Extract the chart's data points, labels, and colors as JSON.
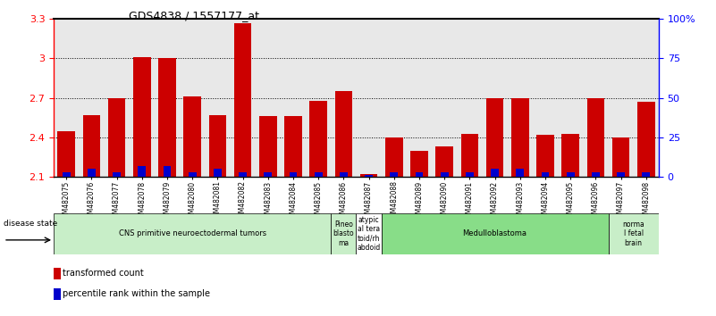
{
  "title": "GDS4838 / 1557177_at",
  "samples": [
    "GSM482075",
    "GSM482076",
    "GSM482077",
    "GSM482078",
    "GSM482079",
    "GSM482080",
    "GSM482081",
    "GSM482082",
    "GSM482083",
    "GSM482084",
    "GSM482085",
    "GSM482086",
    "GSM482087",
    "GSM482088",
    "GSM482089",
    "GSM482090",
    "GSM482091",
    "GSM482092",
    "GSM482093",
    "GSM482094",
    "GSM482095",
    "GSM482096",
    "GSM482097",
    "GSM482098"
  ],
  "red_values": [
    2.45,
    2.57,
    2.7,
    3.01,
    3.0,
    2.71,
    2.57,
    3.27,
    2.56,
    2.56,
    2.68,
    2.75,
    2.12,
    2.4,
    2.3,
    2.33,
    2.43,
    2.7,
    2.7,
    2.42,
    2.43,
    2.7,
    2.4,
    2.67
  ],
  "blue_pct": [
    3,
    5,
    3,
    7,
    7,
    3,
    5,
    3,
    3,
    3,
    3,
    3,
    1,
    3,
    3,
    3,
    3,
    5,
    5,
    3,
    3,
    3,
    3,
    3
  ],
  "ymin": 2.1,
  "ymax": 3.3,
  "yticks_left": [
    2.1,
    2.4,
    2.7,
    3.0,
    3.3
  ],
  "yticks_right": [
    0,
    25,
    50,
    75,
    100
  ],
  "bar_color_red": "#cc0000",
  "bar_color_blue": "#0000cc",
  "plot_bg": "#e8e8e8",
  "disease_groups": [
    {
      "label": "CNS primitive neuroectodermal tumors",
      "start": 0,
      "end": 11,
      "color": "#c8eec8"
    },
    {
      "label": "Pineo\nblasto\nma",
      "start": 11,
      "end": 12,
      "color": "#c8eec8"
    },
    {
      "label": "atypic\nal tera\ntoid/rh\nabdoid",
      "start": 12,
      "end": 13,
      "color": "#ffffff"
    },
    {
      "label": "Medulloblastoma",
      "start": 13,
      "end": 22,
      "color": "#88dd88"
    },
    {
      "label": "norma\nl fetal\nbrain",
      "start": 22,
      "end": 24,
      "color": "#c8eec8"
    }
  ],
  "legend_items": [
    {
      "label": "transformed count",
      "color": "#cc0000"
    },
    {
      "label": "percentile rank within the sample",
      "color": "#0000cc"
    }
  ]
}
